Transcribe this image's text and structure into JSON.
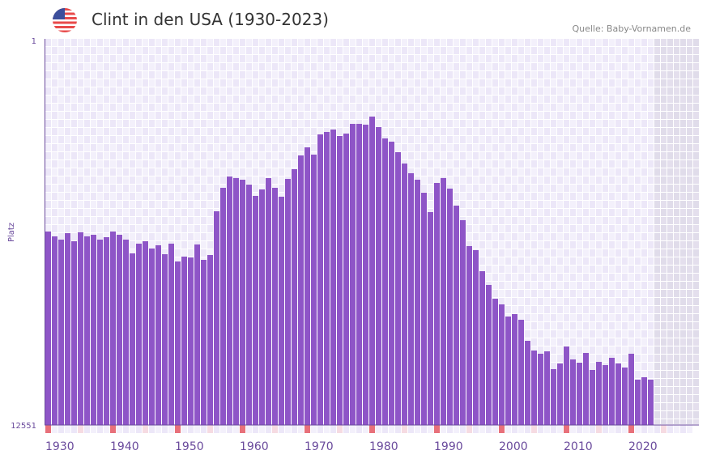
{
  "header": {
    "title": "Clint in den USA (1930-2023)",
    "source": "Quelle: Baby-Vornamen.de",
    "flag_icon": "us-flag-icon"
  },
  "chart_data": {
    "type": "bar",
    "title": "Clint in den USA (1930-2023)",
    "xlabel": "",
    "ylabel": "Platz",
    "ylim": [
      12551,
      1
    ],
    "y_ticks": [
      "1",
      "12551"
    ],
    "x_ticks": [
      "1930",
      "1940",
      "1950",
      "1960",
      "1970",
      "1980",
      "1990",
      "2000",
      "2010",
      "2020"
    ],
    "x_range": [
      1930,
      2029
    ],
    "bar_color": "#8e55c7",
    "x": [
      1930,
      1931,
      1932,
      1933,
      1934,
      1935,
      1936,
      1937,
      1938,
      1939,
      1940,
      1941,
      1942,
      1943,
      1944,
      1945,
      1946,
      1947,
      1948,
      1949,
      1950,
      1951,
      1952,
      1953,
      1954,
      1955,
      1956,
      1957,
      1958,
      1959,
      1960,
      1961,
      1962,
      1963,
      1964,
      1965,
      1966,
      1967,
      1968,
      1969,
      1970,
      1971,
      1972,
      1973,
      1974,
      1975,
      1976,
      1977,
      1978,
      1979,
      1980,
      1981,
      1982,
      1983,
      1984,
      1985,
      1986,
      1987,
      1988,
      1989,
      1990,
      1991,
      1992,
      1993,
      1994,
      1995,
      1996,
      1997,
      1998,
      1999,
      2000,
      2001,
      2002,
      2003,
      2004,
      2005,
      2006,
      2007,
      2008,
      2009,
      2010,
      2011,
      2012,
      2013,
      2014,
      2015,
      2016,
      2017,
      2018,
      2019,
      2020,
      2021,
      2022,
      2023
    ],
    "values": [
      6263,
      6420,
      6526,
      6316,
      6579,
      6289,
      6420,
      6368,
      6526,
      6447,
      6263,
      6368,
      6526,
      6973,
      6657,
      6579,
      6815,
      6710,
      7000,
      6657,
      7236,
      7078,
      7105,
      6684,
      7184,
      7026,
      5605,
      4842,
      4474,
      4526,
      4579,
      4737,
      5105,
      4895,
      4526,
      4842,
      5131,
      4553,
      4237,
      3790,
      3527,
      3763,
      3106,
      3027,
      2948,
      3158,
      3079,
      2764,
      2764,
      2790,
      2527,
      2869,
      3237,
      3342,
      3684,
      4053,
      4368,
      4579,
      5000,
      5631,
      4684,
      4526,
      4868,
      5421,
      5894,
      6736,
      6868,
      7552,
      7999,
      8446,
      8631,
      9025,
      8946,
      9131,
      9815,
      10130,
      10235,
      10157,
      10735,
      10551,
      9999,
      10420,
      10525,
      10209,
      10762,
      10499,
      10604,
      10367,
      10551,
      10683,
      10235,
      11077,
      10998,
      11077
    ]
  }
}
